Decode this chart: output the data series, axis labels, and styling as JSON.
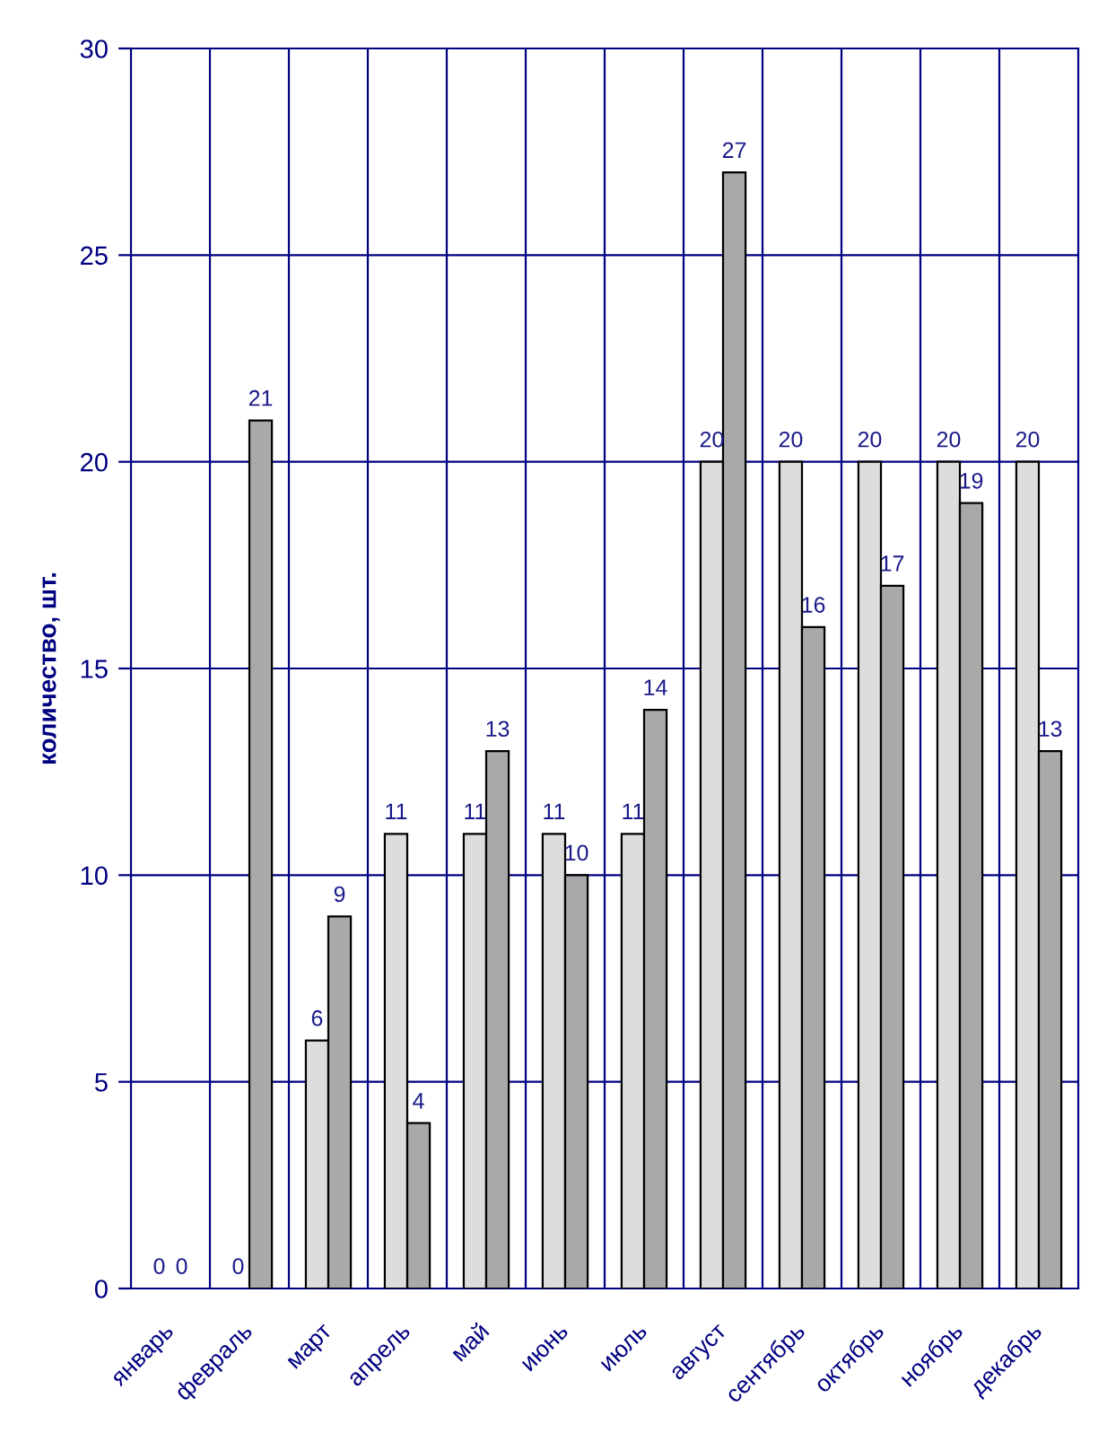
{
  "chart_data": {
    "type": "bar",
    "ylabel": "количество, шт.",
    "categories": [
      "январь",
      "февраль",
      "март",
      "апрель",
      "май",
      "июнь",
      "июль",
      "август",
      "сентябрь",
      "октябрь",
      "ноябрь",
      "декабрь"
    ],
    "series": [
      {
        "color": "#dddddd",
        "values": [
          0,
          0,
          6,
          11,
          11,
          11,
          11,
          20,
          20,
          20,
          20,
          20
        ]
      },
      {
        "color": "#a9a9a9",
        "values": [
          0,
          21,
          9,
          4,
          13,
          10,
          14,
          27,
          16,
          17,
          19,
          13
        ]
      }
    ],
    "ylim": [
      0,
      30
    ],
    "yticks": [
      0,
      5,
      10,
      15,
      20,
      25,
      30
    ],
    "grid": true,
    "data_labels": true
  }
}
